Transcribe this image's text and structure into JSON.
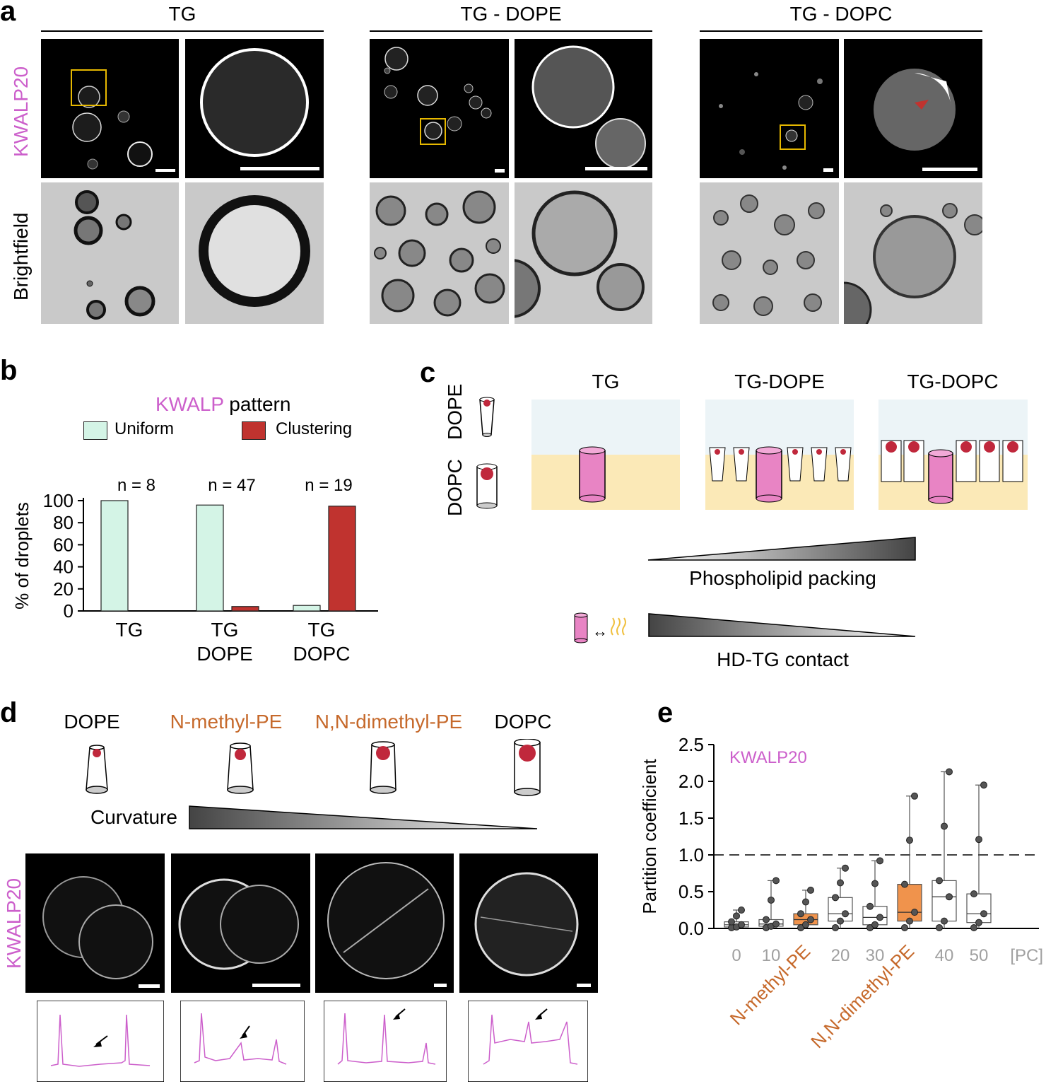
{
  "panels": {
    "a": "a",
    "b": "b",
    "c": "c",
    "d": "d",
    "e": "e"
  },
  "colors": {
    "magenta": "#cc5fcb",
    "orange": "#c6692b",
    "uniform": "#d4f4e6",
    "clustering": "#c0332f",
    "gray_label": "#a0a0a0",
    "box_orange": "#f0934c"
  },
  "panel_a": {
    "conditions": [
      "TG",
      "TG - DOPE",
      "TG - DOPC"
    ],
    "row_labels": [
      "KWALP20",
      "Brightfield"
    ]
  },
  "panel_b": {
    "title_colored": "KWALP",
    "title_rest": "pattern",
    "legend": [
      "Uniform",
      "Clustering"
    ],
    "ylabel": "% of droplets",
    "n_labels": [
      "n = 8",
      "n = 47",
      "n = 19"
    ],
    "yticks": [
      "0",
      "20",
      "40",
      "60",
      "80",
      "100"
    ]
  },
  "chart_data": {
    "type": "bar",
    "categories": [
      "TG",
      "TG DOPE",
      "TG DOPC"
    ],
    "category_lines": [
      [
        "TG"
      ],
      [
        "TG",
        "DOPE"
      ],
      [
        "TG",
        "DOPC"
      ]
    ],
    "series": [
      {
        "name": "Uniform",
        "values": [
          100,
          96,
          5
        ]
      },
      {
        "name": "Clustering",
        "values": [
          0,
          4,
          95
        ]
      }
    ],
    "xlabel": "",
    "ylabel": "% of droplets",
    "ylim": [
      0,
      100
    ],
    "legend_position": "top"
  },
  "panel_c": {
    "lipid_labels": [
      "DOPE",
      "DOPC"
    ],
    "conditions": [
      "TG",
      "TG-DOPE",
      "TG-DOPC"
    ],
    "gradient_1": "Phospholipid packing",
    "gradient_2": "HD-TG contact",
    "arrow_symbol": "↔"
  },
  "panel_d": {
    "lipids": [
      {
        "name": "DOPE",
        "color": "black"
      },
      {
        "name": "N-methyl-PE",
        "color": "orange"
      },
      {
        "name": "N,N-dimethyl-PE",
        "color": "orange"
      },
      {
        "name": "DOPC",
        "color": "black"
      }
    ],
    "curvature_label": "Curvature",
    "row_label": "KWALP20"
  },
  "panel_e": {
    "chart_data": {
      "type": "box",
      "ylabel": "Partition coefficient",
      "ylim": [
        0,
        2.5
      ],
      "yticks": [
        "0.0",
        "0.5",
        "1.0",
        "1.5",
        "2.0",
        "2.5"
      ],
      "reference_line": 1.0,
      "annotation": "KWALP20",
      "categories": [
        "0",
        "10",
        "N-methyl-PE",
        "20",
        "30",
        "N,N-dimethyl-PE",
        "40",
        "50"
      ],
      "unit_label": "[PC]",
      "boxes": [
        {
          "label": "0",
          "min": 0.0,
          "q1": 0.02,
          "median": 0.05,
          "q3": 0.09,
          "max": 0.25
        },
        {
          "label": "10",
          "min": 0.0,
          "q1": 0.03,
          "median": 0.06,
          "q3": 0.12,
          "max": 0.65
        },
        {
          "label": "N-methyl-PE",
          "min": 0.0,
          "q1": 0.05,
          "median": 0.12,
          "q3": 0.2,
          "max": 0.52
        },
        {
          "label": "20",
          "min": 0.0,
          "q1": 0.1,
          "median": 0.2,
          "q3": 0.42,
          "max": 0.82
        },
        {
          "label": "30",
          "min": 0.0,
          "q1": 0.05,
          "median": 0.15,
          "q3": 0.3,
          "max": 0.92
        },
        {
          "label": "N,N-dimethyl-PE",
          "min": 0.0,
          "q1": 0.1,
          "median": 0.22,
          "q3": 0.6,
          "max": 1.8
        },
        {
          "label": "40",
          "min": 0.0,
          "q1": 0.1,
          "median": 0.43,
          "q3": 0.65,
          "max": 2.13
        },
        {
          "label": "50",
          "min": 0.0,
          "q1": 0.08,
          "median": 0.2,
          "q3": 0.47,
          "max": 1.95
        }
      ]
    }
  }
}
